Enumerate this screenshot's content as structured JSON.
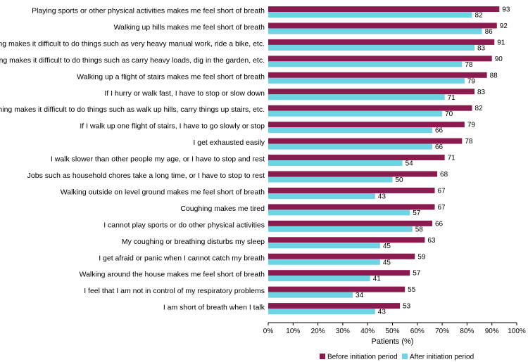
{
  "chart_data": {
    "type": "bar",
    "orientation": "horizontal",
    "categories": [
      "Playing sports or other physical activities makes me feel short of breath",
      "Walking up hills makes me feel short of breath",
      "My breathing makes it difficult to do things such as very heavy manual work, ride a bike, etc.",
      "My breathing makes it difficult to do things such as carry heavy loads, dig in the garden, etc.",
      "Walking up a flight of stairs makes me feel short of breath",
      "If I hurry or walk fast, I have to stop or slow down",
      "My breathing makes it difficult to do things such as walk up hills, carry things up stairs, etc.",
      "If I walk up one flight of stairs, I have to go slowly or stop",
      "I get exhausted easily",
      "I walk slower than other people my age, or I have to stop and rest",
      "Jobs such as household chores take a long time, or I have to stop to rest",
      "Walking outside on level ground makes me feel short of breath",
      "Coughing makes me tired",
      "I cannot play sports or do other physical activities",
      "My coughing or breathing disturbs my sleep",
      "I get afraid or panic when I cannot catch my breath",
      "Walking around the house makes me feel short of breath",
      "I feel that I am not in control of my respiratory problems",
      "I am short of breath when I talk"
    ],
    "series": [
      {
        "name": "Before initiation period",
        "color": "#8B1A4F",
        "values": [
          93,
          92,
          91,
          90,
          88,
          83,
          82,
          79,
          78,
          71,
          68,
          67,
          67,
          66,
          63,
          59,
          57,
          55,
          53
        ]
      },
      {
        "name": "After initiation period",
        "color": "#6ED3E3",
        "values": [
          82,
          86,
          83,
          78,
          79,
          71,
          70,
          66,
          66,
          54,
          50,
          43,
          57,
          58,
          45,
          45,
          41,
          34,
          43
        ]
      }
    ],
    "xlabel": "Patients (%)",
    "xlim": [
      0,
      100
    ],
    "xticks": [
      0,
      10,
      20,
      30,
      40,
      50,
      60,
      70,
      80,
      90,
      100
    ],
    "tick_suffix": "%",
    "legend_position": "bottom-right"
  }
}
